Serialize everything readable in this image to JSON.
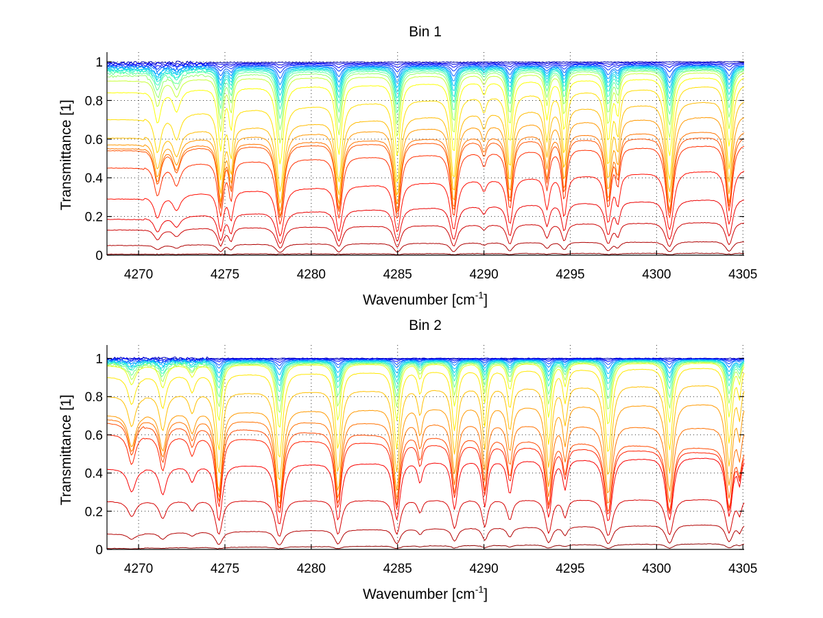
{
  "figure": {
    "panels": [
      "Bin 1",
      "Bin 2"
    ]
  },
  "chart_data": [
    {
      "type": "line",
      "title": "Bin 1",
      "xlabel": "Wavenumber [cm",
      "xlabel_superscript": "-1",
      "xlabel_suffix": "]",
      "ylabel": "Transmittance [1]",
      "xlim": [
        4268.17,
        4305.07
      ],
      "ylim": [
        0,
        1.05
      ],
      "grid": true,
      "x_ticks": [
        4270,
        4275,
        4280,
        4285,
        4290,
        4295,
        4300,
        4305
      ],
      "x_tick_labels": [
        "4270",
        "4275",
        "4280",
        "4285",
        "4290",
        "4295",
        "4300",
        "4305"
      ],
      "y_ticks": [
        0,
        0.2,
        0.4,
        0.6,
        0.8,
        1
      ],
      "y_tick_labels": [
        "0",
        "0.2",
        "0.4",
        "0.6",
        "0.8",
        "1"
      ],
      "colormap": [
        "#00008f",
        "#0000ff",
        "#00bfff",
        "#40ffbf",
        "#ffff00",
        "#ff8000",
        "#ff0000",
        "#8f0000"
      ],
      "absorption_lines": [
        {
          "x": 4271.1,
          "depth": 0.35,
          "width": 0.22
        },
        {
          "x": 4272.2,
          "depth": 0.22,
          "width": 0.25
        },
        {
          "x": 4274.75,
          "depth": 0.75,
          "width": 0.16
        },
        {
          "x": 4275.35,
          "depth": 0.45,
          "width": 0.14
        },
        {
          "x": 4278.2,
          "depth": 1.0,
          "width": 0.2
        },
        {
          "x": 4281.6,
          "depth": 0.85,
          "width": 0.18
        },
        {
          "x": 4284.98,
          "depth": 0.9,
          "width": 0.18
        },
        {
          "x": 4288.25,
          "depth": 0.85,
          "width": 0.18
        },
        {
          "x": 4290.0,
          "depth": 0.12,
          "width": 0.15
        },
        {
          "x": 4291.5,
          "depth": 0.7,
          "width": 0.17
        },
        {
          "x": 4293.65,
          "depth": 0.4,
          "width": 0.15
        },
        {
          "x": 4294.65,
          "depth": 0.55,
          "width": 0.15
        },
        {
          "x": 4297.2,
          "depth": 0.7,
          "width": 0.18
        },
        {
          "x": 4297.75,
          "depth": 0.35,
          "width": 0.14
        },
        {
          "x": 4300.75,
          "depth": 0.95,
          "width": 0.2
        },
        {
          "x": 4304.2,
          "depth": 0.8,
          "width": 0.18
        }
      ],
      "series_baselines_left": [
        0.995,
        0.99,
        0.985,
        0.98,
        0.975,
        0.97,
        0.965,
        0.96,
        0.955,
        0.95,
        0.94,
        0.925,
        0.9,
        0.84,
        0.7,
        0.605,
        0.57,
        0.55,
        0.54,
        0.45,
        0.29,
        0.185,
        0.13,
        0.05,
        0.005
      ],
      "series_baselines_right": [
        1.0,
        0.995,
        0.99,
        0.985,
        0.98,
        0.978,
        0.975,
        0.972,
        0.97,
        0.965,
        0.96,
        0.955,
        0.945,
        0.92,
        0.88,
        0.8,
        0.72,
        0.64,
        0.61,
        0.57,
        0.44,
        0.29,
        0.17,
        0.07,
        0.01
      ],
      "series_optical_scale": [
        0.0,
        0.004,
        0.01,
        0.02,
        0.035,
        0.05,
        0.065,
        0.08,
        0.1,
        0.12,
        0.15,
        0.19,
        0.24,
        0.32,
        0.45,
        0.5,
        0.55,
        0.58,
        0.6,
        0.62,
        0.7,
        0.75,
        0.8,
        0.85,
        0.9
      ]
    },
    {
      "type": "line",
      "title": "Bin 2",
      "xlabel": "Wavenumber [cm",
      "xlabel_superscript": "-1",
      "xlabel_suffix": "]",
      "ylabel": "Transmittance [1]",
      "xlim": [
        4268.17,
        4305.07
      ],
      "ylim": [
        0,
        1.07
      ],
      "grid": true,
      "x_ticks": [
        4270,
        4275,
        4280,
        4285,
        4290,
        4295,
        4300,
        4305
      ],
      "x_tick_labels": [
        "4270",
        "4275",
        "4280",
        "4285",
        "4290",
        "4295",
        "4300",
        "4305"
      ],
      "y_ticks": [
        0,
        0.2,
        0.4,
        0.6,
        0.8,
        1
      ],
      "y_tick_labels": [
        "0",
        "0.2",
        "0.4",
        "0.6",
        "0.8",
        "1"
      ],
      "colormap": [
        "#00008f",
        "#0000ff",
        "#00bfff",
        "#40ffbf",
        "#ffff00",
        "#ff8000",
        "#ff0000",
        "#8f0000"
      ],
      "absorption_lines": [
        {
          "x": 4269.6,
          "depth": 0.25,
          "width": 0.25
        },
        {
          "x": 4271.4,
          "depth": 0.3,
          "width": 0.22
        },
        {
          "x": 4273.1,
          "depth": 0.15,
          "width": 0.2
        },
        {
          "x": 4274.65,
          "depth": 0.85,
          "width": 0.18
        },
        {
          "x": 4278.15,
          "depth": 1.0,
          "width": 0.2
        },
        {
          "x": 4281.55,
          "depth": 0.85,
          "width": 0.18
        },
        {
          "x": 4284.95,
          "depth": 0.85,
          "width": 0.18
        },
        {
          "x": 4286.3,
          "depth": 0.2,
          "width": 0.15
        },
        {
          "x": 4288.3,
          "depth": 0.6,
          "width": 0.17
        },
        {
          "x": 4290.05,
          "depth": 0.55,
          "width": 0.15
        },
        {
          "x": 4291.5,
          "depth": 0.35,
          "width": 0.17
        },
        {
          "x": 4293.75,
          "depth": 0.8,
          "width": 0.17
        },
        {
          "x": 4294.7,
          "depth": 0.3,
          "width": 0.15
        },
        {
          "x": 4297.2,
          "depth": 0.95,
          "width": 0.2
        },
        {
          "x": 4300.75,
          "depth": 0.9,
          "width": 0.19
        },
        {
          "x": 4304.2,
          "depth": 0.8,
          "width": 0.18
        },
        {
          "x": 4304.8,
          "depth": 0.25,
          "width": 0.12
        }
      ],
      "series_baselines_left": [
        1.0,
        0.998,
        0.995,
        0.99,
        0.988,
        0.985,
        0.98,
        0.978,
        0.975,
        0.97,
        0.965,
        0.96,
        0.9,
        0.8,
        0.7,
        0.68,
        0.66,
        0.6,
        0.42,
        0.25,
        0.08,
        0.005
      ],
      "series_baselines_right": [
        1.0,
        0.998,
        0.997,
        0.995,
        0.993,
        0.99,
        0.99,
        0.988,
        0.985,
        0.983,
        0.98,
        0.975,
        0.95,
        0.86,
        0.76,
        0.63,
        0.52,
        0.5,
        0.48,
        0.26,
        0.13,
        0.03
      ],
      "series_optical_scale": [
        0.0,
        0.003,
        0.008,
        0.015,
        0.025,
        0.04,
        0.055,
        0.07,
        0.09,
        0.12,
        0.16,
        0.22,
        0.35,
        0.45,
        0.55,
        0.58,
        0.6,
        0.62,
        0.7,
        0.78,
        0.85,
        0.9
      ]
    }
  ]
}
